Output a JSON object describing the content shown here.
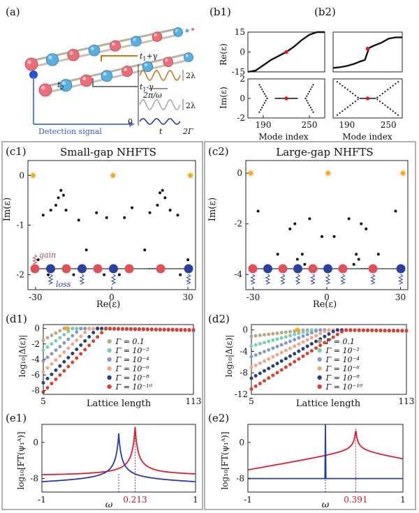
{
  "panels": {
    "a": {
      "label": "(a)",
      "t2": "t",
      "t2_sub": "2",
      "t1_plus": "t",
      "t1_plus_sub": "1",
      "t1_plus_rest": "+γ",
      "t1_minus": "t",
      "t1_minus_sub": "1",
      "t1_minus_rest": "-γ",
      "period": "2π/ω",
      "amp1": "2λ",
      "amp2": "2λ",
      "zero": "0",
      "time": "t",
      "gamma": "2Γ",
      "detection": "Detection signal"
    },
    "b1": {
      "label": "(b1)",
      "re_ylabel": "Re(ε)",
      "im_ylabel": "Im(ε)",
      "xlabel": "Mode index"
    },
    "b2": {
      "label": "(b2)",
      "xlabel": "Mode index"
    },
    "c1": {
      "label": "(c1)",
      "title": "Small-gap NHFTS",
      "ylabel": "Im(ε)",
      "xlabel": "Re(ε)",
      "gain": "gain",
      "loss": "loss",
      "dots": "···"
    },
    "c2": {
      "label": "(c2)",
      "title": "Large-gap NHFTS",
      "ylabel": "Im(ε)",
      "xlabel": "Re(ε)",
      "dots": "···"
    },
    "d1": {
      "label": "(d1)",
      "ylabel": "log₁₀|Δ(ε)|",
      "xlabel": "Lattice length"
    },
    "d2": {
      "label": "(d2)",
      "ylabel": "log₁₀|Δ(ε)|",
      "xlabel": "Lattice length"
    },
    "e1": {
      "label": "(e1)",
      "ylabel": "log₁₀[FT(ψ₁ᴬ)]",
      "xlabel": "ω",
      "peak_label": "0.213"
    },
    "e2": {
      "label": "(e2)",
      "ylabel": "log₁₀[FT(ψ₁ᴬ)]",
      "xlabel": "ω",
      "peak_label": "0.391"
    }
  },
  "colors": {
    "red_site": "#e0505a",
    "blue_site": "#2a3f9e",
    "star": "#f5a623",
    "red_line": "#d62030",
    "blue_line": "#2a3aa8",
    "peak_text": "#c8102e"
  },
  "chart_data": [
    {
      "id": "b1-re",
      "type": "line",
      "ylabel": "Re(ε)",
      "xlim": [
        170,
        270
      ],
      "ylim": [
        -15,
        15
      ],
      "xticks": [
        190,
        250
      ],
      "yticks": [
        15,
        0,
        -15
      ],
      "x": [
        170,
        180,
        190,
        200,
        210,
        220,
        230,
        240,
        250,
        260,
        270
      ],
      "values": [
        -15,
        -14,
        -10,
        -6,
        -3,
        0,
        4,
        9,
        13,
        15,
        15
      ],
      "highlight": {
        "x": 220,
        "y": 0
      }
    },
    {
      "id": "b1-im",
      "type": "scatter",
      "ylabel": "Im(ε)",
      "xlim": [
        170,
        270
      ],
      "ylim": [
        -2,
        2
      ],
      "xticks": [
        190,
        250
      ],
      "yticks": [
        2,
        0,
        -2
      ],
      "highlight": {
        "x": 220,
        "y": 0
      }
    },
    {
      "id": "b2-re",
      "type": "line",
      "xlim": [
        170,
        270
      ],
      "ylim": [
        -15,
        15
      ],
      "x": [
        170,
        180,
        190,
        200,
        210,
        216,
        222,
        230,
        240,
        250,
        260,
        270
      ],
      "values": [
        -12,
        -11.5,
        -10.5,
        -9,
        -7,
        -6,
        3,
        5,
        7,
        10,
        11,
        11
      ],
      "highlight": {
        "x": 220,
        "y": 2.5
      }
    },
    {
      "id": "b2-im",
      "type": "scatter",
      "xlim": [
        170,
        270
      ],
      "ylim": [
        -2,
        2
      ],
      "highlight": {
        "x": 220,
        "y": 0
      }
    },
    {
      "id": "c1",
      "type": "scatter",
      "title": "Small-gap NHFTS",
      "xlabel": "Re(ε)",
      "ylabel": "Im(ε)",
      "xlim": [
        -33,
        33
      ],
      "ylim": [
        -2.3,
        0.3
      ],
      "xticks": [
        -30,
        0,
        30
      ],
      "yticks": [
        0,
        -1,
        -2
      ],
      "stars": [
        [
          -31,
          0
        ],
        [
          0.5,
          0
        ],
        [
          31,
          0
        ]
      ],
      "points": [
        [
          -29,
          -1.7
        ],
        [
          -27,
          -0.8
        ],
        [
          -25,
          -2
        ],
        [
          -24,
          -0.7
        ],
        [
          -22,
          -0.6
        ],
        [
          -21,
          -0.45
        ],
        [
          -20,
          -0.3
        ],
        [
          -19,
          -0.4
        ],
        [
          -18,
          -0.7
        ],
        [
          -15,
          -2
        ],
        [
          -13,
          -0.9
        ],
        [
          -10,
          -1.5
        ],
        [
          -6,
          -0.75
        ],
        [
          -3,
          -2
        ],
        [
          -2,
          -0.85
        ],
        [
          3,
          -2
        ],
        [
          5,
          -0.85
        ],
        [
          8,
          -0.65
        ],
        [
          13,
          -1.5
        ],
        [
          15,
          -0.75
        ],
        [
          18,
          -0.6
        ],
        [
          19,
          -0.35
        ],
        [
          20,
          -0.3
        ],
        [
          21,
          -0.45
        ],
        [
          23,
          -0.7
        ],
        [
          26,
          -0.8
        ],
        [
          27,
          -2
        ],
        [
          30,
          -1.7
        ]
      ]
    },
    {
      "id": "c2",
      "type": "scatter",
      "title": "Large-gap NHFTS",
      "xlabel": "Re(ε)",
      "ylabel": "Im(ε)",
      "xlim": [
        -33,
        33
      ],
      "ylim": [
        -4.6,
        0.5
      ],
      "xticks": [
        -30,
        0,
        30
      ],
      "yticks": [
        0,
        -2,
        -4
      ],
      "stars": [
        [
          -31,
          0
        ],
        [
          0.5,
          0
        ],
        [
          31,
          0
        ]
      ],
      "points": [
        [
          -28,
          -1.5
        ],
        [
          -20,
          -3.2
        ],
        [
          -17,
          -3.7
        ],
        [
          -15,
          -2.2
        ],
        [
          -13,
          -2
        ],
        [
          -12,
          -3.4
        ],
        [
          -10,
          -3.2
        ],
        [
          -9,
          -3.6
        ],
        [
          -7,
          -1.8
        ],
        [
          -2,
          -2.5
        ],
        [
          3,
          -2.5
        ],
        [
          9,
          -1.8
        ],
        [
          11,
          -3.6
        ],
        [
          12,
          -3.2
        ],
        [
          13,
          -3.4
        ],
        [
          14,
          -2
        ],
        [
          16,
          -2.2
        ],
        [
          18,
          -3.7
        ],
        [
          21,
          -3.2
        ],
        [
          28,
          -1.5
        ]
      ]
    },
    {
      "id": "d1",
      "type": "scatter",
      "xlabel": "Lattice length",
      "ylabel": "log₁₀|Δ(ε)|",
      "xlim": [
        5,
        113
      ],
      "ylim": [
        -8.5,
        0.5
      ],
      "xticks": [
        5,
        113
      ],
      "yticks": [
        0,
        -2,
        -4,
        -6,
        -8
      ],
      "series": [
        {
          "name": "Γ = 0.1",
          "color": "#b9a88a",
          "start": -1.5,
          "rise_end": 20,
          "plateau": 0
        },
        {
          "name": "Γ = 10⁻²",
          "color": "#7ccdb4",
          "start": -2.8,
          "rise_end": 26,
          "plateau": 0
        },
        {
          "name": "Γ = 10⁻⁴",
          "color": "#8899c8",
          "start": -4.2,
          "rise_end": 32,
          "plateau": 0
        },
        {
          "name": "Γ = 10⁻⁶",
          "color": "#f2a58a",
          "start": -5.6,
          "rise_end": 38,
          "plateau": 0
        },
        {
          "name": "Γ = 10⁻⁸",
          "color": "#2a3f80",
          "start": -7,
          "rise_end": 44,
          "plateau": 0
        },
        {
          "name": "Γ = 10⁻¹⁰",
          "color": "#d9412e",
          "start": -8.2,
          "rise_end": 50,
          "plateau": 0
        }
      ],
      "marker": {
        "x": 22,
        "y": 0
      }
    },
    {
      "id": "d2",
      "type": "scatter",
      "xlabel": "Lattice length",
      "ylabel": "log₁₀|Δ(ε)|",
      "xlim": [
        5,
        113
      ],
      "ylim": [
        -12,
        1
      ],
      "xticks": [
        5,
        113
      ],
      "yticks": [
        0,
        -4,
        -8,
        -12
      ],
      "series": [
        {
          "name": "Γ = 0.1",
          "color": "#b9a88a",
          "start": -1.2,
          "rise_end": 42,
          "plateau": 0
        },
        {
          "name": "Γ = 10⁻²",
          "color": "#7ccdb4",
          "start": -3,
          "rise_end": 47,
          "plateau": 0
        },
        {
          "name": "Γ = 10⁻⁴",
          "color": "#8899c8",
          "start": -5,
          "rise_end": 52,
          "plateau": 0
        },
        {
          "name": "Γ = 10⁻⁶",
          "color": "#f2a58a",
          "start": -7,
          "rise_end": 58,
          "plateau": 0
        },
        {
          "name": "Γ = 10⁻⁸",
          "color": "#2a3f80",
          "start": -9,
          "rise_end": 64,
          "plateau": 0
        },
        {
          "name": "Γ = 10⁻¹⁰",
          "color": "#d9412e",
          "start": -11,
          "rise_end": 70,
          "plateau": 0
        }
      ],
      "marker": {
        "x": 37,
        "y": 0
      }
    },
    {
      "id": "e1",
      "type": "line",
      "xlabel": "ω",
      "ylabel": "log₁₀[FT(ψ₁ᴬ)]",
      "xlim": [
        -1,
        1
      ],
      "ylim": [
        -11,
        4
      ],
      "xticks": [
        -1,
        1
      ],
      "yticks": [
        0,
        -8
      ],
      "series": [
        {
          "name": "red",
          "color": "#d62030",
          "peak": 0.213,
          "base": -7.5,
          "top": 3.5
        },
        {
          "name": "blue",
          "color": "#2a3aa8",
          "peak": 0.0,
          "base": -8.5,
          "top": 2
        }
      ],
      "peak_marker": 0.213
    },
    {
      "id": "e2",
      "type": "line",
      "xlabel": "ω",
      "ylabel": "log₁₀[FT(ψ₁ᴬ)]",
      "xlim": [
        -1,
        1
      ],
      "ylim": [
        -11,
        4
      ],
      "xticks": [
        -1,
        1
      ],
      "yticks": [
        0,
        -8
      ],
      "series": [
        {
          "name": "red",
          "color": "#d62030",
          "peak": 0.391,
          "base": -5,
          "top": 3
        },
        {
          "name": "blue",
          "color": "#2a3aa8",
          "peak": 0.0,
          "base": -8,
          "top": 4
        }
      ],
      "peak_marker": 0.391
    }
  ]
}
